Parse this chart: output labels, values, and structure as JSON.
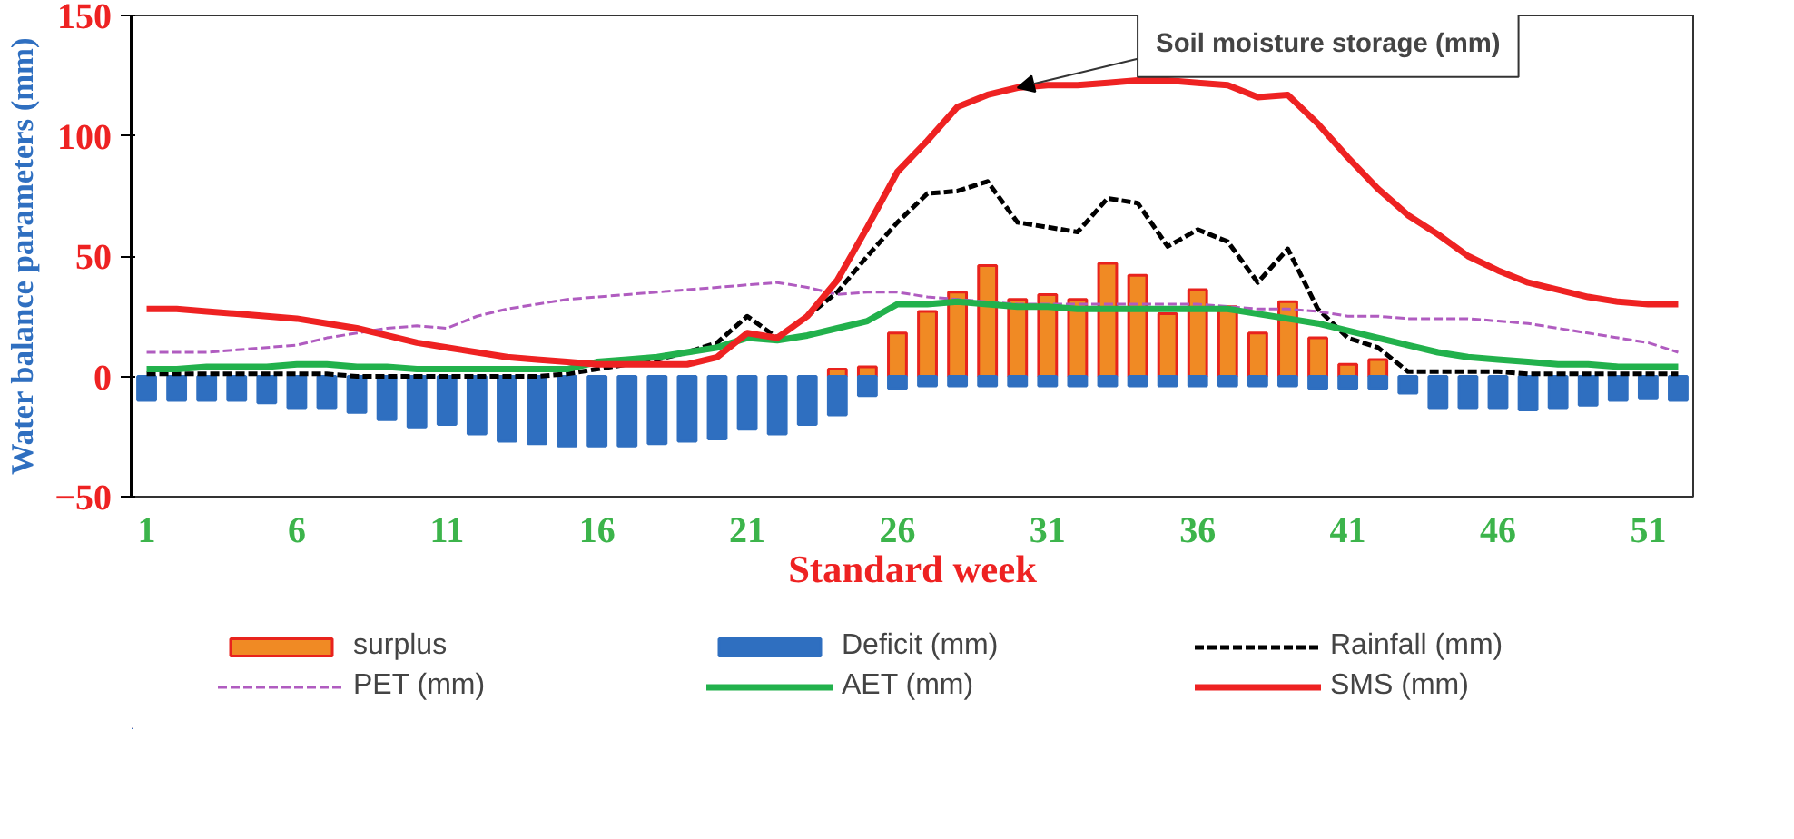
{
  "chart_data": {
    "type": "bar",
    "xlabel": "Standard week",
    "ylabel": "Water balance parameters (mm)",
    "x": [
      1,
      2,
      3,
      4,
      5,
      6,
      7,
      8,
      9,
      10,
      11,
      12,
      13,
      14,
      15,
      16,
      17,
      18,
      19,
      20,
      21,
      22,
      23,
      24,
      25,
      26,
      27,
      28,
      29,
      30,
      31,
      32,
      33,
      34,
      35,
      36,
      37,
      38,
      39,
      40,
      41,
      42,
      43,
      44,
      45,
      46,
      47,
      48,
      49,
      50,
      51,
      52
    ],
    "xlim": [
      0.5,
      52.5
    ],
    "xticks": [
      1,
      6,
      11,
      16,
      21,
      26,
      31,
      36,
      41,
      46,
      51
    ],
    "ylim": [
      -50,
      150
    ],
    "yticks": [
      -50,
      0,
      50,
      100,
      150
    ],
    "grid": false,
    "legend": "bottom",
    "series": [
      {
        "name": "surplus",
        "color": "#f08a24",
        "values": [
          null,
          null,
          null,
          null,
          null,
          null,
          null,
          null,
          null,
          null,
          null,
          null,
          null,
          null,
          null,
          null,
          null,
          null,
          null,
          null,
          null,
          null,
          null,
          3,
          4,
          18,
          27,
          35,
          46,
          32,
          34,
          32,
          47,
          42,
          26,
          36,
          29,
          18,
          31,
          16,
          5,
          7,
          null,
          null,
          null,
          null,
          null,
          null,
          null,
          null,
          null,
          null
        ]
      },
      {
        "name": "Deficit (mm)",
        "color": "#2f6fc0",
        "values": [
          -10,
          -10,
          -10,
          -10,
          -11,
          -13,
          -13,
          -15,
          -18,
          -21,
          -20,
          -24,
          -27,
          -28,
          -29,
          -29,
          -29,
          -28,
          -27,
          -26,
          -22,
          -24,
          -20,
          -16,
          -8,
          -5,
          -4,
          -4,
          -4,
          -4,
          -4,
          -4,
          -4,
          -4,
          -4,
          -4,
          -4,
          -4,
          -4,
          -5,
          -5,
          -5,
          -7,
          -13,
          -13,
          -13,
          -14,
          -13,
          -12,
          -10,
          -9,
          -10
        ]
      },
      {
        "name": "Rainfall (mm)",
        "type": "line",
        "color": "#000000",
        "line_style": "dashed",
        "values": [
          1,
          1,
          1,
          1,
          1,
          1,
          1,
          0,
          0,
          0,
          0,
          0,
          0,
          0,
          1,
          3,
          5,
          7,
          10,
          14,
          25,
          16,
          25,
          35,
          50,
          64,
          76,
          77,
          81,
          64,
          62,
          60,
          74,
          72,
          54,
          61,
          56,
          39,
          53,
          28,
          16,
          12,
          2,
          2,
          2,
          2,
          1,
          1,
          1,
          1,
          1,
          1
        ]
      },
      {
        "name": "PET (mm)",
        "type": "line",
        "color": "#b05cc0",
        "line_style": "dashed",
        "values": [
          10,
          10,
          10,
          11,
          12,
          13,
          16,
          18,
          20,
          21,
          20,
          25,
          28,
          30,
          32,
          33,
          34,
          35,
          36,
          37,
          38,
          39,
          37,
          34,
          35,
          35,
          33,
          32,
          31,
          30,
          30,
          30,
          30,
          30,
          30,
          30,
          29,
          28,
          28,
          27,
          25,
          25,
          24,
          24,
          24,
          23,
          22,
          20,
          18,
          16,
          14,
          10
        ]
      },
      {
        "name": "AET (mm)",
        "type": "line",
        "color": "#22b14c",
        "line_style": "solid",
        "values": [
          3,
          3,
          4,
          4,
          4,
          5,
          5,
          4,
          4,
          3,
          3,
          3,
          3,
          3,
          3,
          6,
          7,
          8,
          10,
          12,
          16,
          15,
          17,
          20,
          23,
          30,
          30,
          31,
          30,
          29,
          29,
          28,
          28,
          28,
          28,
          28,
          28,
          26,
          24,
          22,
          19,
          16,
          13,
          10,
          8,
          7,
          6,
          5,
          5,
          4,
          4,
          4
        ]
      },
      {
        "name": "SMS (mm)",
        "type": "line",
        "color": "#ee2222",
        "line_style": "solid",
        "values": [
          28,
          28,
          27,
          26,
          25,
          24,
          22,
          20,
          17,
          14,
          12,
          10,
          8,
          7,
          6,
          5,
          5,
          5,
          5,
          8,
          18,
          16,
          25,
          40,
          62,
          85,
          98,
          112,
          117,
          120,
          121,
          121,
          122,
          123,
          123,
          122,
          121,
          116,
          117,
          105,
          91,
          78,
          67,
          59,
          50,
          44,
          39,
          36,
          33,
          31,
          30,
          30
        ]
      }
    ],
    "annotations": [
      {
        "text": "Soil moisture storage (mm)",
        "x": 30,
        "y": 120
      }
    ]
  }
}
